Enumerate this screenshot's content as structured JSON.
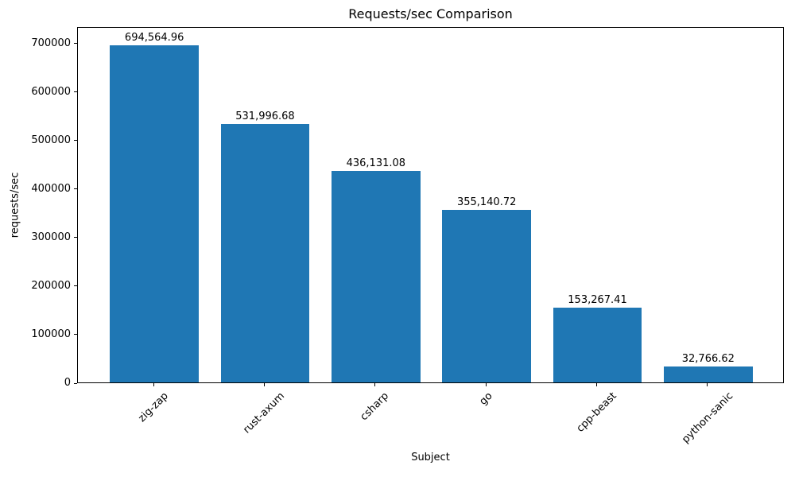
{
  "chart_data": {
    "type": "bar",
    "title": "Requests/sec Comparison",
    "xlabel": "Subject",
    "ylabel": "requests/sec",
    "categories": [
      "zig-zap",
      "rust-axum",
      "csharp",
      "go",
      "cpp-beast",
      "python-sanic"
    ],
    "values": [
      694564.96,
      531996.68,
      436131.08,
      355140.72,
      153267.41,
      32766.62
    ],
    "value_labels": [
      "694,564.96",
      "531,996.68",
      "436,131.08",
      "355,140.72",
      "153,267.41",
      "32,766.62"
    ],
    "ytick_values": [
      0,
      100000,
      200000,
      300000,
      400000,
      500000,
      600000,
      700000
    ],
    "ytick_labels": [
      "0",
      "100000",
      "200000",
      "300000",
      "400000",
      "500000",
      "600000",
      "700000"
    ],
    "ylim": [
      0,
      734000
    ],
    "grid": false,
    "legend_position": "none",
    "bar_color": "#1f77b4",
    "axis_color": "#000000",
    "text_color": "#000000",
    "background_color": "#ffffff"
  }
}
